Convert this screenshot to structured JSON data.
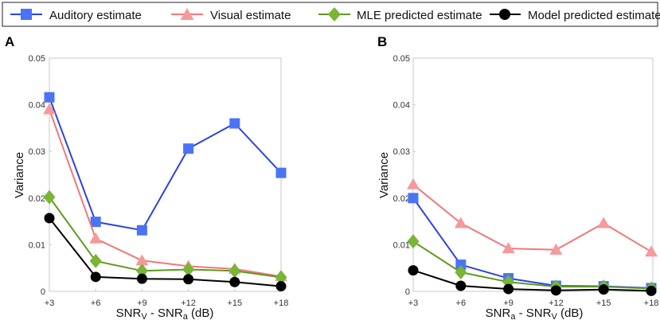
{
  "chart_data": [
    {
      "type": "line",
      "panel": "A",
      "categories": [
        "+3",
        "+6",
        "+9",
        "+12",
        "+15",
        "+18"
      ],
      "xlabel": {
        "prefix": "SNR",
        "sub1": "V",
        "mid": " - SNR",
        "sub2": "a",
        "suffix": " (dB)"
      },
      "ylabel": "Variance",
      "ylim": [
        0,
        0.05
      ],
      "yticks": [
        "0",
        "0.01",
        "0.02",
        "0.03",
        "0.04",
        "0.05"
      ],
      "yticks_values": [
        0,
        0.01,
        0.02,
        0.03,
        0.04,
        0.05
      ],
      "grid": false,
      "series": [
        {
          "name": "Auditory estimate",
          "values": [
            0.0416,
            0.0149,
            0.0131,
            0.0306,
            0.036,
            0.0254
          ]
        },
        {
          "name": "Visual estimate",
          "values": [
            0.039,
            0.0113,
            0.0066,
            0.0054,
            0.0048,
            0.0032
          ]
        },
        {
          "name": "MLE predicted estimate",
          "values": [
            0.0202,
            0.0065,
            0.0044,
            0.0047,
            0.0044,
            0.003
          ]
        },
        {
          "name": "Model predicted estimate",
          "values": [
            0.0157,
            0.0031,
            0.0027,
            0.0026,
            0.002,
            0.0011
          ]
        }
      ]
    },
    {
      "type": "line",
      "panel": "B",
      "categories": [
        "+3",
        "+6",
        "+9",
        "+12",
        "+15",
        "+18"
      ],
      "xlabel": {
        "prefix": "SNR",
        "sub1": "a",
        "mid": " - SNR",
        "sub2": "V",
        "suffix": " (dB)"
      },
      "ylabel": "Variance",
      "ylim": [
        0,
        0.05
      ],
      "yticks": [
        "0",
        "0.01",
        "0.02",
        "0.03",
        "0.04",
        "0.05"
      ],
      "yticks_values": [
        0,
        0.01,
        0.02,
        0.03,
        0.04,
        0.05
      ],
      "grid": false,
      "series": [
        {
          "name": "Auditory estimate",
          "values": [
            0.02,
            0.0057,
            0.0028,
            0.0012,
            0.0011,
            0.0007
          ]
        },
        {
          "name": "Visual estimate",
          "values": [
            0.0229,
            0.0146,
            0.0092,
            0.0089,
            0.0146,
            0.0085
          ]
        },
        {
          "name": "MLE predicted estimate",
          "values": [
            0.0107,
            0.0041,
            0.002,
            0.001,
            0.001,
            0.0006
          ]
        },
        {
          "name": "Model predicted estimate",
          "values": [
            0.0045,
            0.0012,
            0.0005,
            0.0002,
            0.0004,
            0.0001
          ]
        }
      ]
    }
  ],
  "legend": {
    "placement": "top",
    "items": [
      {
        "label": "Auditory estimate",
        "color": "#3a5ce8",
        "marker": "square"
      },
      {
        "label": "Visual estimate",
        "color": "#f08a8a",
        "marker": "triangle"
      },
      {
        "label": "MLE predicted estimate",
        "color": "#6fa32a",
        "marker": "diamond"
      },
      {
        "label": "Model predicted estimate",
        "color": "#000000",
        "marker": "circle"
      }
    ]
  },
  "colors": {
    "auditory_line": "#2a43e0",
    "auditory_marker": "#4b73f5",
    "visual_line": "#f07878",
    "visual_marker": "#f59a9a",
    "mle_line": "#5d9a1d",
    "mle_marker": "#79b536",
    "model_line": "#000000",
    "model_marker": "#000000"
  }
}
